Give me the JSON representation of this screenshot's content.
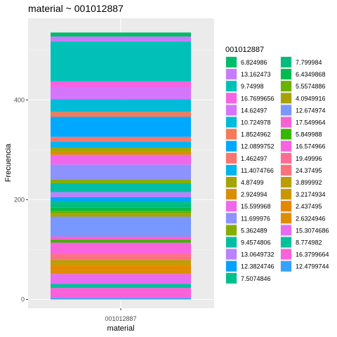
{
  "chart_data": {
    "type": "bar",
    "stacked": true,
    "title": "material ~ 001012887",
    "xlabel": "material",
    "ylabel": "Frecuencia",
    "categories": [
      "001012887"
    ],
    "ylim": [
      -17.6,
      563.6
    ],
    "yticks": [
      0,
      200,
      400
    ],
    "legend_title": "001012887",
    "legend_position": "right",
    "series": [
      {
        "name": "6.824986",
        "value": 8,
        "color": "#00BE67"
      },
      {
        "name": "13.162473",
        "value": 10,
        "color": "#C77CFF"
      },
      {
        "name": "9.74998",
        "value": 80,
        "color": "#00C0B8"
      },
      {
        "name": "16.7699656",
        "value": 12,
        "color": "#F564E3"
      },
      {
        "name": "14.62497",
        "value": 24,
        "color": "#D575FE"
      },
      {
        "name": "10.724978",
        "value": 25,
        "color": "#00BCD8"
      },
      {
        "name": "1.8524962",
        "value": 10,
        "color": "#F37B59"
      },
      {
        "name": "12.0899752",
        "value": 40,
        "color": "#00A8FF"
      },
      {
        "name": "1.462497",
        "value": 10,
        "color": "#F8766D"
      },
      {
        "name": "11.4074766",
        "value": 12,
        "color": "#00B4EF"
      },
      {
        "name": "4.87499",
        "value": 7,
        "color": "#A3A500"
      },
      {
        "name": "2.924994",
        "value": 7,
        "color": "#D89000"
      },
      {
        "name": "15.599968",
        "value": 20,
        "color": "#EF67EB"
      },
      {
        "name": "11.699976",
        "value": 30,
        "color": "#8E92FF"
      },
      {
        "name": "5.362489",
        "value": 7,
        "color": "#85AD00"
      },
      {
        "name": "9.4574806",
        "value": 18,
        "color": "#00BDA4"
      },
      {
        "name": "13.0649732",
        "value": 10,
        "color": "#BB81FF"
      },
      {
        "name": "12.3824746",
        "value": 8,
        "color": "#00A3FF"
      },
      {
        "name": "7.5074846",
        "value": 5,
        "color": "#00C08B"
      },
      {
        "name": "7.799984",
        "value": 8,
        "color": "#00BC80"
      },
      {
        "name": "6.4349868",
        "value": 6,
        "color": "#00BB4E"
      },
      {
        "name": "5.5574886",
        "value": 6,
        "color": "#6BB100"
      },
      {
        "name": "4.0949916",
        "value": 6,
        "color": "#A8A200"
      },
      {
        "name": "12.674974",
        "value": 40,
        "color": "#7997FF"
      },
      {
        "name": "17.549964",
        "value": 6,
        "color": "#FC61D1"
      },
      {
        "name": "5.849988",
        "value": 6,
        "color": "#39B600"
      },
      {
        "name": "16.574966",
        "value": 22,
        "color": "#F863DE"
      },
      {
        "name": "19.49996",
        "value": 5,
        "color": "#FF6C91"
      },
      {
        "name": "24.37495",
        "value": 8,
        "color": "#FB727C"
      },
      {
        "name": "3.899992",
        "value": 6,
        "color": "#BB9D00"
      },
      {
        "name": "3.2174934",
        "value": 6,
        "color": "#C99800"
      },
      {
        "name": "2.437495",
        "value": 8,
        "color": "#E58700"
      },
      {
        "name": "2.6324946",
        "value": 8,
        "color": "#DF8D00"
      },
      {
        "name": "15.3074686",
        "value": 20,
        "color": "#E76BF3"
      },
      {
        "name": "8.774982",
        "value": 8,
        "color": "#00C19A"
      },
      {
        "name": "16.3799664",
        "value": 20,
        "color": "#FA62DB"
      },
      {
        "name": "12.4799744",
        "value": 3,
        "color": "#35A2FF"
      }
    ],
    "stack_order": [
      "12.4799744",
      "16.3799664",
      "8.774982",
      "15.3074686",
      "2.6324946",
      "2.437495",
      "3.2174934",
      "3.899992",
      "24.37495",
      "19.49996",
      "16.574966",
      "5.849988",
      "17.549964",
      "12.674974",
      "4.0949916",
      "5.5574886",
      "6.4349868",
      "7.799984",
      "7.5074846",
      "12.3824746",
      "13.0649732",
      "9.4574806",
      "5.362489",
      "11.699976",
      "15.599968",
      "2.924994",
      "4.87499",
      "11.4074766",
      "1.462497",
      "12.0899752",
      "1.8524962",
      "10.724978",
      "14.62497",
      "16.7699656",
      "9.74998",
      "13.162473",
      "6.824986"
    ],
    "draw_order": [
      "1.462497",
      "1.8524962",
      "16.3799664",
      "16.7699656",
      "15.3074686",
      "15.599968",
      "16.574966",
      "14.62497",
      "13.162473",
      "13.0649732",
      "11.699976",
      "12.674974",
      "12.4799744",
      "12.3824746",
      "12.0899752",
      "11.4074766",
      "10.724978",
      "9.74998",
      "9.4574806",
      "8.774982",
      "7.799984",
      "7.5074846",
      "6.824986",
      "6.4349868",
      "5.849988",
      "5.5574886",
      "5.362489",
      "4.87499",
      "4.0949916",
      "3.899992",
      "3.2174934",
      "2.924994",
      "2.6324946",
      "2.437495",
      "19.49996",
      "24.37495",
      "17.549964"
    ]
  }
}
